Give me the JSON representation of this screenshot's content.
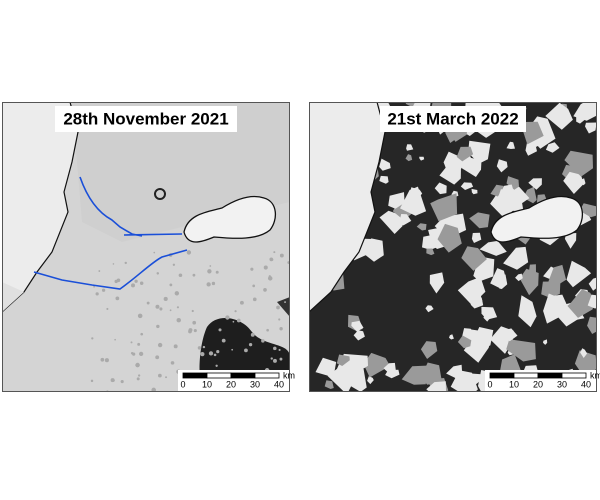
{
  "panels": [
    {
      "title": "28th November 2021",
      "scale": {
        "ticks": [
          0,
          10,
          20,
          30,
          40
        ],
        "unit": "km"
      }
    },
    {
      "title": "21st March 2022",
      "scale": {
        "ticks": [
          0,
          10,
          20,
          30,
          40
        ],
        "unit": "km"
      }
    }
  ]
}
